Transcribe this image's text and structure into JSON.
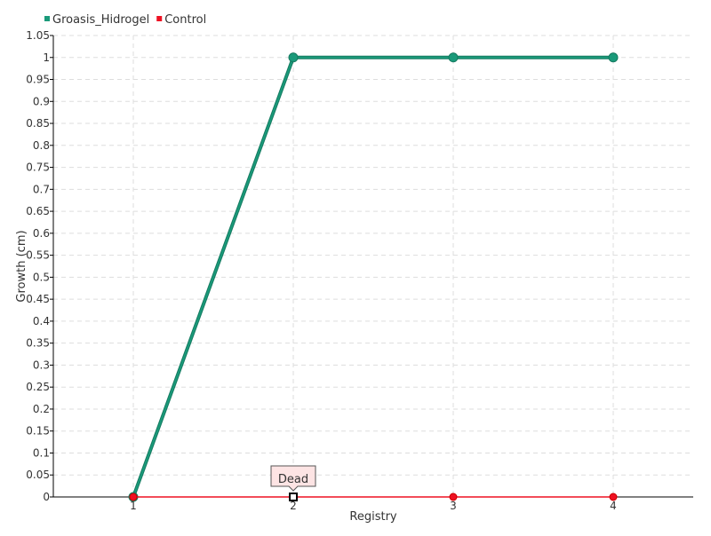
{
  "chart_data": {
    "type": "line",
    "title": "",
    "xlabel": "Registry",
    "ylabel": "Growth (cm)",
    "x": [
      1,
      2,
      3,
      4
    ],
    "xlim": [
      0.5,
      4.5
    ],
    "ylim": [
      0,
      1.05
    ],
    "y_ticks": [
      0,
      0.05,
      0.1,
      0.15,
      0.2,
      0.25,
      0.3,
      0.35,
      0.4,
      0.45,
      0.5,
      0.55,
      0.6,
      0.65,
      0.7,
      0.75,
      0.8,
      0.85,
      0.9,
      0.95,
      1,
      1.05
    ],
    "grid": true,
    "legend_placement": "top-left",
    "series": [
      {
        "name": "Groasis_Hidrogel",
        "values": [
          0,
          1,
          1,
          1
        ],
        "color": "#1a9a7a"
      },
      {
        "name": "Control",
        "values": [
          0,
          0,
          0,
          0
        ],
        "color": "#ee1122"
      }
    ],
    "annotations": [
      {
        "text": "Dead",
        "x": 2,
        "y": 0,
        "series": "Control"
      }
    ]
  }
}
